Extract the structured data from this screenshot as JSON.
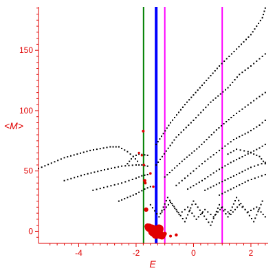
{
  "chart_data": {
    "type": "scatter",
    "xlabel": "E",
    "ylabel": "<M>",
    "xlim": [
      -5.4,
      2.6
    ],
    "ylim": [
      -10,
      186
    ],
    "xticks": [
      -4,
      -2,
      0,
      2
    ],
    "xtick_labels": [
      "-4",
      "-2",
      "0",
      "2"
    ],
    "yticks": [
      0,
      50,
      100,
      150
    ],
    "ytick_labels": [
      "0",
      "50",
      "100",
      "150"
    ],
    "grid": false,
    "legend": "none",
    "vertical_lines": [
      {
        "x": -1.74,
        "color": "#008000"
      },
      {
        "x": -1.3,
        "color": "#0000ff"
      },
      {
        "x": -1.0,
        "color": "#ff00ff"
      },
      {
        "x": 1.0,
        "color": "#ff00ff"
      }
    ],
    "series": [
      {
        "color": "#000000",
        "x": [
          -5.4,
          -4.5,
          -3.6,
          -2.9,
          -2.6,
          -2.3,
          -2.1,
          -1.95
        ],
        "y": [
          52,
          61,
          67,
          70,
          70,
          66,
          62,
          58
        ]
      },
      {
        "color": "#000000",
        "x": [
          -4.5,
          -3.8,
          -3.1,
          -2.5,
          -2.0,
          -1.8,
          -1.6
        ],
        "y": [
          42,
          47,
          51,
          54,
          55,
          55,
          54
        ]
      },
      {
        "color": "#000000",
        "x": [
          -3.5,
          -3.0,
          -2.5,
          -2.0,
          -1.8,
          -1.6
        ],
        "y": [
          34,
          37,
          40,
          44,
          46,
          47
        ]
      },
      {
        "color": "#000000",
        "x": [
          -2.6,
          -2.3,
          -2.0,
          -1.7,
          -1.5
        ],
        "y": [
          25,
          28,
          31,
          35,
          37
        ]
      },
      {
        "color": "#000000",
        "x": [
          -2.3,
          -2.1,
          -1.9,
          -1.6
        ],
        "y": [
          56,
          62,
          64,
          63
        ]
      },
      {
        "color": "#000000",
        "x": [
          -1.3,
          -0.8,
          -0.3,
          0.3,
          0.9,
          1.5,
          2.0,
          2.4,
          2.5
        ],
        "y": [
          72,
          90,
          105,
          121,
          137,
          151,
          163,
          177,
          185
        ]
      },
      {
        "color": "#000000",
        "x": [
          -1.3,
          -0.6,
          0.0,
          0.6,
          1.2,
          1.6,
          2.0,
          2.5
        ],
        "y": [
          55,
          78,
          92,
          107,
          119,
          130,
          137,
          147
        ]
      },
      {
        "color": "#000000",
        "x": [
          -1.0,
          -0.4,
          0.2,
          0.8,
          1.4,
          1.8,
          2.2,
          2.5
        ],
        "y": [
          45,
          58,
          70,
          84,
          96,
          103,
          110,
          115
        ]
      },
      {
        "color": "#000000",
        "x": [
          -0.6,
          -0.1,
          0.4,
          0.9,
          1.4,
          1.9,
          2.3,
          2.5
        ],
        "y": [
          38,
          48,
          58,
          67,
          76,
          82,
          88,
          92
        ]
      },
      {
        "color": "#000000",
        "x": [
          -0.2,
          0.3,
          0.8,
          1.3,
          1.8,
          2.3,
          2.5
        ],
        "y": [
          35,
          42,
          50,
          57,
          63,
          69,
          72
        ]
      },
      {
        "color": "#000000",
        "x": [
          0.4,
          0.9,
          1.5,
          2.0,
          2.5
        ],
        "y": [
          34,
          40,
          47,
          53,
          57
        ]
      },
      {
        "color": "#000000",
        "x": [
          0.9,
          1.4,
          1.9,
          2.5
        ],
        "y": [
          30,
          36,
          42,
          47
        ]
      },
      {
        "color": "#000000",
        "x": [
          1.2,
          1.5,
          1.9,
          2.3,
          2.5
        ],
        "y": [
          64,
          68,
          66,
          62,
          56
        ]
      },
      {
        "color": "#000000",
        "x": [
          -1.5,
          -1.2,
          -0.9,
          -0.6,
          -0.3,
          0.0,
          0.3,
          0.6,
          0.9,
          1.2,
          1.5,
          1.8,
          2.1,
          2.4
        ],
        "y": [
          22,
          12,
          28,
          18,
          8,
          25,
          15,
          5,
          22,
          12,
          28,
          18,
          8,
          25
        ]
      },
      {
        "color": "#000000",
        "x": [
          -1.1,
          -0.8,
          -0.5,
          -0.2,
          0.1,
          0.4,
          0.7,
          1.0,
          1.3,
          1.6,
          1.9,
          2.2,
          2.5
        ],
        "y": [
          16,
          24,
          14,
          20,
          10,
          18,
          12,
          20,
          14,
          22,
          16,
          20,
          12
        ]
      }
    ],
    "highlight_points": {
      "color": "#e00000",
      "x": [
        -1.75,
        -1.8,
        -1.9,
        -1.73,
        -1.7,
        -1.68,
        -1.65,
        -1.6,
        -1.55,
        -1.45,
        -1.4,
        -1.35,
        -1.3,
        -1.25,
        -1.2,
        -1.15,
        -1.1,
        -1.05,
        -1.0,
        -0.8,
        -0.6,
        -1.5,
        -1.4
      ],
      "y": [
        83,
        63,
        65,
        55,
        42,
        40,
        18,
        4,
        3,
        2,
        0,
        1,
        -2,
        -1,
        2,
        -3,
        -4,
        -3,
        -2,
        -4,
        -3,
        48,
        37
      ],
      "r": [
        2.0,
        1.6,
        1.6,
        1.8,
        2.4,
        2.0,
        3.2,
        4.5,
        6.0,
        6.5,
        7.5,
        7.0,
        7.5,
        7.0,
        6.5,
        6.0,
        5.0,
        4.0,
        3.0,
        2.0,
        2.2,
        1.8,
        1.8
      ]
    }
  }
}
